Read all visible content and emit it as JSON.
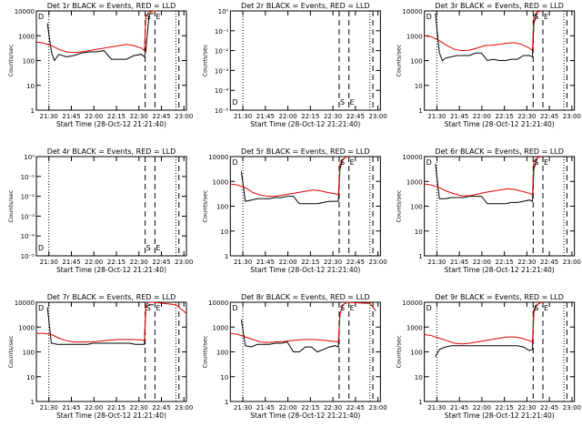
{
  "chart_data": {
    "type": "line",
    "grid_rows": 3,
    "grid_cols": 3,
    "xlabel": "Start Time (28-Oct-12 21:21:40)",
    "ylabel": "Counts/sec",
    "x_tick_labels": [
      "21:30",
      "21:45",
      "22:00",
      "22:15",
      "22:30",
      "22:45",
      "23:00"
    ],
    "x_ticks_min": [
      8.33,
      23.33,
      38.33,
      53.33,
      68.33,
      83.33,
      98.33
    ],
    "xlim_min": [
      0,
      100
    ],
    "log_ylim": [
      0,
      4
    ],
    "vlines_dotted_min": [
      8.33,
      93.0
    ],
    "vlines_dashed_min": [
      72.5,
      79.0,
      95.0
    ],
    "panels": [
      {
        "title": "Det 1r BLACK = Events, RED = LLD",
        "y_tick_labels": [
          "1",
          "10",
          "100",
          "1000",
          "10000"
        ],
        "labels": [
          "D",
          "S",
          "E"
        ],
        "events_min": [
          7.33,
          10,
          12,
          15,
          20,
          25,
          30,
          35,
          40,
          45,
          50,
          55,
          60,
          65,
          70,
          72,
          73,
          75,
          76,
          78
        ],
        "events_log": [
          3.5,
          2.35,
          2.0,
          2.25,
          2.15,
          2.2,
          2.3,
          2.35,
          2.35,
          2.4,
          2.05,
          2.05,
          2.05,
          2.2,
          2.25,
          2.15,
          2.4,
          3.8,
          3.9,
          3.9
        ],
        "lld_min": [
          0,
          5,
          10,
          15,
          20,
          25,
          30,
          35,
          40,
          45,
          50,
          55,
          60,
          65,
          70,
          72,
          73,
          75,
          78,
          80
        ],
        "lld_log": [
          2.75,
          2.7,
          2.6,
          2.45,
          2.35,
          2.32,
          2.35,
          2.4,
          2.45,
          2.5,
          2.55,
          2.6,
          2.65,
          2.6,
          2.5,
          2.4,
          3.8,
          3.95,
          4.0,
          4.0
        ]
      },
      {
        "title": "Det 2r BLACK = Events, RED = LLD",
        "y_tick_labels": [
          "10⁻⁵",
          "10⁻⁴",
          "10⁻³",
          "10⁻²",
          "10⁻¹",
          "10⁰"
        ],
        "labels": [
          "D",
          "S",
          "E"
        ],
        "events_min": [],
        "events_log": [],
        "lld_min": [],
        "lld_log": []
      },
      {
        "title": "Det 3r BLACK = Events, RED = LLD",
        "y_tick_labels": [
          "1",
          "10",
          "100",
          "1000",
          "10000"
        ],
        "labels": [
          "D",
          "S",
          "E"
        ],
        "events_min": [
          7.33,
          10,
          12,
          14,
          18,
          22,
          26,
          30,
          34,
          38,
          42,
          46,
          50,
          54,
          58,
          62,
          66,
          70,
          72,
          73,
          75
        ],
        "events_log": [
          3.9,
          2.3,
          2.0,
          2.1,
          2.15,
          2.2,
          2.2,
          2.2,
          2.3,
          2.3,
          2.0,
          2.05,
          2.0,
          2.0,
          2.05,
          2.05,
          2.2,
          2.2,
          2.15,
          3.5,
          3.9
        ],
        "lld_min": [
          0,
          5,
          10,
          15,
          20,
          25,
          30,
          35,
          40,
          45,
          50,
          55,
          60,
          65,
          70,
          72,
          73,
          75,
          78
        ],
        "lld_log": [
          3.0,
          2.95,
          2.8,
          2.6,
          2.45,
          2.4,
          2.42,
          2.5,
          2.6,
          2.62,
          2.65,
          2.7,
          2.72,
          2.65,
          2.5,
          2.4,
          3.8,
          3.95,
          4.0
        ]
      },
      {
        "title": "Det 4r BLACK = Events, RED = LLD",
        "y_tick_labels": [
          "10⁻⁵",
          "10⁻⁴",
          "10⁻³",
          "10⁻²",
          "10⁻¹",
          "10⁰"
        ],
        "labels": [
          "D",
          "S",
          "E"
        ],
        "events_min": [],
        "events_log": [],
        "lld_min": [],
        "lld_log": []
      },
      {
        "title": "Det 5r BLACK = Events, RED = LLD",
        "y_tick_labels": [
          "1",
          "10",
          "100",
          "1000",
          "10000"
        ],
        "labels": [
          "D",
          "S",
          "E"
        ],
        "events_min": [
          7.33,
          10,
          14,
          18,
          22,
          26,
          30,
          34,
          38,
          42,
          46,
          50,
          54,
          58,
          62,
          66,
          70,
          72,
          73,
          75
        ],
        "events_log": [
          3.4,
          2.2,
          2.25,
          2.3,
          2.3,
          2.3,
          2.35,
          2.35,
          2.4,
          2.4,
          2.1,
          2.1,
          2.1,
          2.1,
          2.15,
          2.2,
          2.2,
          2.2,
          3.5,
          3.9
        ],
        "lld_min": [
          0,
          5,
          10,
          15,
          20,
          25,
          30,
          35,
          40,
          45,
          50,
          55,
          60,
          65,
          70,
          72,
          73,
          75,
          78
        ],
        "lld_log": [
          2.9,
          2.85,
          2.75,
          2.55,
          2.45,
          2.4,
          2.4,
          2.45,
          2.5,
          2.55,
          2.6,
          2.65,
          2.62,
          2.55,
          2.5,
          2.45,
          3.7,
          3.9,
          4.0
        ]
      },
      {
        "title": "Det 6r BLACK = Events, RED = LLD",
        "y_tick_labels": [
          "1",
          "10",
          "100",
          "1000",
          "10000"
        ],
        "labels": [
          "D",
          "S",
          "E"
        ],
        "events_min": [
          7.33,
          10,
          14,
          18,
          22,
          26,
          30,
          34,
          38,
          42,
          46,
          50,
          54,
          58,
          62,
          66,
          70,
          72,
          73,
          75
        ],
        "events_log": [
          3.7,
          2.3,
          2.3,
          2.35,
          2.35,
          2.35,
          2.4,
          2.4,
          2.4,
          2.1,
          2.1,
          2.1,
          2.1,
          2.15,
          2.15,
          2.2,
          2.25,
          2.2,
          3.5,
          3.9
        ],
        "lld_min": [
          0,
          5,
          10,
          15,
          20,
          25,
          30,
          35,
          40,
          45,
          50,
          55,
          60,
          65,
          70,
          72,
          73,
          75,
          78
        ],
        "lld_log": [
          2.9,
          2.85,
          2.75,
          2.6,
          2.5,
          2.42,
          2.42,
          2.48,
          2.55,
          2.6,
          2.65,
          2.7,
          2.68,
          2.6,
          2.52,
          2.45,
          3.8,
          3.95,
          4.0
        ]
      },
      {
        "title": "Det 7r BLACK = Events, RED = LLD",
        "y_tick_labels": [
          "1",
          "10",
          "100",
          "1000",
          "10000"
        ],
        "labels": [
          "D",
          "S",
          "E"
        ],
        "events_min": [
          7.33,
          10,
          14,
          18,
          22,
          26,
          30,
          34,
          38,
          42,
          46,
          50,
          54,
          58,
          62,
          66,
          70,
          72,
          73,
          75,
          78
        ],
        "events_log": [
          3.8,
          2.35,
          2.3,
          2.3,
          2.3,
          2.3,
          2.3,
          2.3,
          2.35,
          2.35,
          2.35,
          2.35,
          2.35,
          2.35,
          2.35,
          2.3,
          2.3,
          2.3,
          3.8,
          3.9,
          3.9
        ],
        "lld_min": [
          0,
          5,
          10,
          15,
          20,
          25,
          30,
          35,
          40,
          45,
          50,
          55,
          60,
          65,
          70,
          72,
          73,
          75,
          78,
          93,
          97,
          100
        ],
        "lld_log": [
          2.75,
          2.75,
          2.7,
          2.55,
          2.45,
          2.4,
          2.4,
          2.4,
          2.42,
          2.45,
          2.48,
          2.5,
          2.5,
          2.5,
          2.48,
          2.45,
          3.9,
          4.0,
          4.0,
          3.9,
          3.7,
          3.55
        ]
      },
      {
        "title": "Det 8r BLACK = Events, RED = LLD",
        "y_tick_labels": [
          "1",
          "10",
          "100",
          "1000",
          "10000"
        ],
        "labels": [
          "D",
          "S",
          "E"
        ],
        "events_min": [
          7.33,
          10,
          14,
          18,
          22,
          26,
          30,
          34,
          38,
          42,
          46,
          50,
          54,
          58,
          62,
          66,
          70,
          72,
          73,
          75
        ],
        "events_log": [
          3.3,
          2.25,
          2.2,
          2.3,
          2.3,
          2.3,
          2.35,
          2.35,
          2.4,
          2.0,
          2.0,
          2.2,
          2.2,
          2.0,
          2.1,
          2.2,
          2.25,
          2.2,
          3.5,
          3.9
        ],
        "lld_min": [
          0,
          5,
          10,
          15,
          20,
          25,
          30,
          35,
          40,
          45,
          50,
          55,
          60,
          65,
          70,
          72,
          73,
          75,
          78,
          93,
          97
        ],
        "lld_log": [
          2.75,
          2.7,
          2.6,
          2.5,
          2.4,
          2.38,
          2.4,
          2.42,
          2.45,
          2.48,
          2.5,
          2.5,
          2.48,
          2.45,
          2.42,
          2.4,
          3.5,
          3.9,
          4.0,
          3.95,
          3.65
        ]
      },
      {
        "title": "Det 9r BLACK = Events, RED = LLD",
        "y_tick_labels": [
          "1",
          "10",
          "100",
          "1000",
          "10000"
        ],
        "labels": [
          "D",
          "S",
          "E"
        ],
        "events_min": [
          7.33,
          10,
          14,
          18,
          22,
          26,
          30,
          34,
          38,
          42,
          46,
          50,
          54,
          58,
          62,
          66,
          70,
          72,
          73,
          75
        ],
        "events_log": [
          1.8,
          2.1,
          2.2,
          2.25,
          2.25,
          2.25,
          2.25,
          2.25,
          2.25,
          2.25,
          2.25,
          2.25,
          2.25,
          2.25,
          2.25,
          2.2,
          2.05,
          2.1,
          3.7,
          3.9
        ],
        "lld_min": [
          0,
          5,
          10,
          15,
          20,
          25,
          30,
          35,
          40,
          45,
          50,
          55,
          60,
          65,
          70,
          72,
          73,
          75,
          78
        ],
        "lld_log": [
          2.7,
          2.65,
          2.55,
          2.45,
          2.35,
          2.32,
          2.35,
          2.4,
          2.45,
          2.5,
          2.55,
          2.6,
          2.6,
          2.55,
          2.45,
          2.4,
          3.6,
          3.9,
          4.0
        ]
      }
    ]
  }
}
